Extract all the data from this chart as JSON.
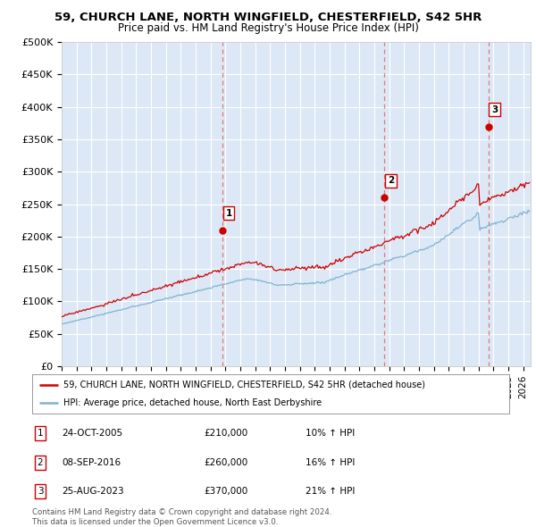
{
  "title_line1": "59, CHURCH LANE, NORTH WINGFIELD, CHESTERFIELD, S42 5HR",
  "title_line2": "Price paid vs. HM Land Registry's House Price Index (HPI)",
  "ylabel_ticks": [
    "£0",
    "£50K",
    "£100K",
    "£150K",
    "£200K",
    "£250K",
    "£300K",
    "£350K",
    "£400K",
    "£450K",
    "£500K"
  ],
  "ytick_values": [
    0,
    50000,
    100000,
    150000,
    200000,
    250000,
    300000,
    350000,
    400000,
    450000,
    500000
  ],
  "ylim": [
    0,
    500000
  ],
  "xlim_start": 1995.0,
  "xlim_end": 2026.5,
  "sale_dates": [
    2005.81,
    2016.69,
    2023.65
  ],
  "sale_prices": [
    210000,
    260000,
    370000
  ],
  "sale_labels": [
    "1",
    "2",
    "3"
  ],
  "hpi_color": "#7fb3d3",
  "price_color": "#cc0000",
  "vline_color": "#dd6666",
  "legend_line1": "59, CHURCH LANE, NORTH WINGFIELD, CHESTERFIELD, S42 5HR (detached house)",
  "legend_line2": "HPI: Average price, detached house, North East Derbyshire",
  "table_data": [
    [
      "1",
      "24-OCT-2005",
      "£210,000",
      "10% ↑ HPI"
    ],
    [
      "2",
      "08-SEP-2016",
      "£260,000",
      "16% ↑ HPI"
    ],
    [
      "3",
      "25-AUG-2023",
      "£370,000",
      "21% ↑ HPI"
    ]
  ],
  "footnote": "Contains HM Land Registry data © Crown copyright and database right 2024.\nThis data is licensed under the Open Government Licence v3.0.",
  "background_color": "#ffffff",
  "plot_bg_color": "#dce8f5",
  "grid_color": "#ffffff"
}
